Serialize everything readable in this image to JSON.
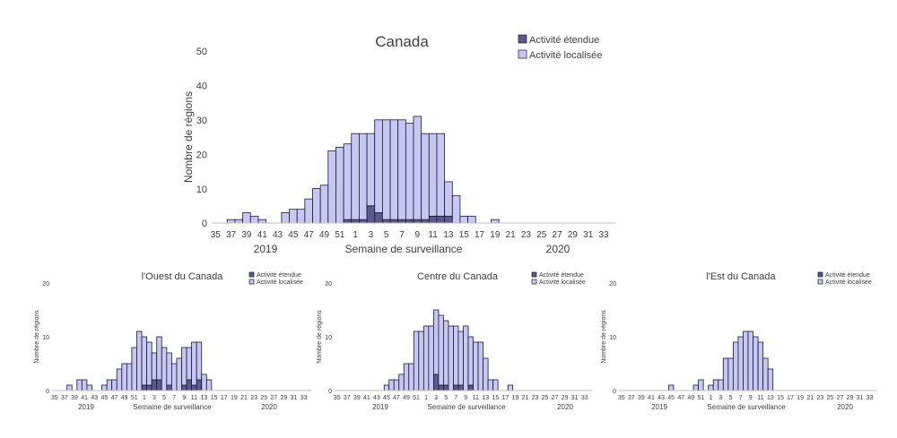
{
  "chart_data": [
    {
      "id": "canada",
      "type": "bar",
      "stacked": true,
      "title": "Canada",
      "xlabel": "Semaine de surveillance",
      "ylabel": "Nombre de régions",
      "ylim": [
        0,
        50
      ],
      "yticks": [
        0,
        10,
        20,
        30,
        40,
        50
      ],
      "categories": [
        35,
        36,
        37,
        38,
        39,
        40,
        41,
        42,
        43,
        44,
        45,
        46,
        47,
        48,
        49,
        50,
        51,
        52,
        1,
        2,
        3,
        4,
        5,
        6,
        7,
        8,
        9,
        10,
        11,
        12,
        13,
        14,
        15,
        16,
        17,
        18,
        19,
        20,
        21,
        22,
        23,
        24,
        25,
        26,
        27,
        28,
        29,
        30,
        31,
        32,
        33,
        34
      ],
      "tick_labels": [
        "35",
        "37",
        "39",
        "41",
        "43",
        "45",
        "47",
        "49",
        "51",
        "1",
        "3",
        "5",
        "7",
        "9",
        "11",
        "13",
        "15",
        "17",
        "19",
        "21",
        "23",
        "25",
        "27",
        "29",
        "31",
        "33"
      ],
      "year_labels": [
        "2019",
        "2020"
      ],
      "legend": {
        "position": "top-right",
        "entries": [
          "Activité étendue",
          "Activité localisée"
        ]
      },
      "series": [
        {
          "name": "Activité étendue",
          "color": "#5b5a8e",
          "values": [
            0,
            0,
            0,
            0,
            0,
            0,
            0,
            0,
            0,
            0,
            0,
            0,
            0,
            0,
            0,
            0,
            0,
            1,
            1,
            1,
            5,
            3,
            1,
            1,
            1,
            1,
            1,
            1,
            2,
            2,
            2,
            0,
            0,
            0,
            0,
            0,
            0,
            0,
            0,
            0,
            0,
            0,
            0,
            0,
            0,
            0,
            0,
            0,
            0,
            0,
            0,
            0
          ]
        },
        {
          "name": "Activité localisée",
          "color": "#c7c7f4",
          "values": [
            0,
            0,
            1,
            1,
            3,
            2,
            1,
            0,
            0,
            3,
            4,
            4,
            7,
            10,
            11,
            21,
            22,
            22,
            25,
            25,
            21,
            27,
            29,
            29,
            29,
            28,
            30,
            25,
            24,
            24,
            10,
            8,
            2,
            2,
            0,
            0,
            1,
            0,
            0,
            0,
            0,
            0,
            0,
            0,
            0,
            0,
            0,
            0,
            0,
            0,
            0,
            0
          ]
        }
      ]
    },
    {
      "id": "ouest",
      "type": "bar",
      "stacked": true,
      "title": "l'Ouest du Canada",
      "xlabel": "Semaine de surveillance",
      "ylabel": "Nombre de régions",
      "ylim": [
        0,
        20
      ],
      "yticks": [
        0,
        10,
        20
      ],
      "categories": [
        35,
        36,
        37,
        38,
        39,
        40,
        41,
        42,
        43,
        44,
        45,
        46,
        47,
        48,
        49,
        50,
        51,
        52,
        1,
        2,
        3,
        4,
        5,
        6,
        7,
        8,
        9,
        10,
        11,
        12,
        13,
        14,
        15,
        16,
        17,
        18,
        19,
        20,
        21,
        22,
        23,
        24,
        25,
        26,
        27,
        28,
        29,
        30,
        31,
        32,
        33,
        34
      ],
      "tick_labels": [
        "35",
        "37",
        "39",
        "41",
        "43",
        "45",
        "47",
        "49",
        "51",
        "1",
        "3",
        "5",
        "7",
        "9",
        "11",
        "13",
        "15",
        "17",
        "19",
        "21",
        "23",
        "25",
        "27",
        "29",
        "31",
        "33"
      ],
      "year_labels": [
        "2019",
        "2020"
      ],
      "legend": {
        "position": "top-right",
        "entries": [
          "Activité étendue",
          "Activité localisée"
        ]
      },
      "series": [
        {
          "name": "Activité étendue",
          "color": "#5b5a8e",
          "values": [
            0,
            0,
            0,
            0,
            0,
            0,
            0,
            0,
            0,
            0,
            0,
            0,
            0,
            0,
            0,
            0,
            0,
            0,
            1,
            1,
            2,
            2,
            0,
            1,
            0,
            0,
            1,
            2,
            1,
            2,
            0,
            0,
            0,
            0,
            0,
            0,
            0,
            0,
            0,
            0,
            0,
            0,
            0,
            0,
            0,
            0,
            0,
            0,
            0,
            0,
            0,
            0
          ]
        },
        {
          "name": "Activité localisée",
          "color": "#c7c7f4",
          "values": [
            0,
            0,
            0,
            1,
            0,
            2,
            2,
            1,
            0,
            0,
            1,
            2,
            2,
            4,
            5,
            5,
            8,
            11,
            9,
            8,
            5,
            8,
            8,
            6,
            5,
            6,
            7,
            6,
            8,
            7,
            3,
            2,
            0,
            0,
            0,
            0,
            0,
            0,
            0,
            0,
            0,
            0,
            0,
            0,
            0,
            0,
            0,
            0,
            0,
            0,
            0,
            0
          ]
        }
      ]
    },
    {
      "id": "centre",
      "type": "bar",
      "stacked": true,
      "title": "Centre du Canada",
      "xlabel": "Semaine de surveillance",
      "ylabel": "Nombre de régions",
      "ylim": [
        0,
        20
      ],
      "yticks": [
        0,
        10,
        20
      ],
      "categories": [
        35,
        36,
        37,
        38,
        39,
        40,
        41,
        42,
        43,
        44,
        45,
        46,
        47,
        48,
        49,
        50,
        51,
        52,
        1,
        2,
        3,
        4,
        5,
        6,
        7,
        8,
        9,
        10,
        11,
        12,
        13,
        14,
        15,
        16,
        17,
        18,
        19,
        20,
        21,
        22,
        23,
        24,
        25,
        26,
        27,
        28,
        29,
        30,
        31,
        32,
        33,
        34
      ],
      "tick_labels": [
        "35",
        "37",
        "39",
        "41",
        "43",
        "45",
        "47",
        "49",
        "51",
        "1",
        "3",
        "5",
        "7",
        "9",
        "11",
        "13",
        "15",
        "17",
        "19",
        "21",
        "23",
        "25",
        "27",
        "29",
        "31",
        "33"
      ],
      "year_labels": [
        "2019",
        "2020"
      ],
      "legend": {
        "position": "top-right",
        "entries": [
          "Activité étendue",
          "Activité localisée"
        ]
      },
      "series": [
        {
          "name": "Activité étendue",
          "color": "#5b5a8e",
          "values": [
            0,
            0,
            0,
            0,
            0,
            0,
            0,
            0,
            0,
            0,
            0,
            0,
            0,
            0,
            0,
            0,
            0,
            0,
            0,
            0,
            3,
            1,
            1,
            0,
            1,
            1,
            0,
            1,
            0,
            0,
            0,
            0,
            0,
            0,
            0,
            0,
            0,
            0,
            0,
            0,
            0,
            0,
            0,
            0,
            0,
            0,
            0,
            0,
            0,
            0,
            0,
            0
          ]
        },
        {
          "name": "Activité localisée",
          "color": "#c7c7f4",
          "values": [
            0,
            0,
            0,
            0,
            0,
            0,
            0,
            0,
            0,
            0,
            1,
            2,
            2,
            3,
            5,
            5,
            11,
            11,
            12,
            12,
            12,
            13,
            12,
            12,
            11,
            10,
            12,
            9,
            9,
            9,
            6,
            2,
            2,
            0,
            0,
            1,
            0,
            0,
            0,
            0,
            0,
            0,
            0,
            0,
            0,
            0,
            0,
            0,
            0,
            0,
            0,
            0
          ]
        }
      ]
    },
    {
      "id": "est",
      "type": "bar",
      "stacked": true,
      "title": "l'Est du Canada",
      "xlabel": "Semaine de surveillance",
      "ylabel": "Nombre de régions",
      "ylim": [
        0,
        20
      ],
      "yticks": [
        0,
        10,
        20
      ],
      "categories": [
        35,
        36,
        37,
        38,
        39,
        40,
        41,
        42,
        43,
        44,
        45,
        46,
        47,
        48,
        49,
        50,
        51,
        52,
        1,
        2,
        3,
        4,
        5,
        6,
        7,
        8,
        9,
        10,
        11,
        12,
        13,
        14,
        15,
        16,
        17,
        18,
        19,
        20,
        21,
        22,
        23,
        24,
        25,
        26,
        27,
        28,
        29,
        30,
        31,
        32,
        33,
        34
      ],
      "tick_labels": [
        "35",
        "37",
        "39",
        "41",
        "43",
        "45",
        "47",
        "49",
        "51",
        "1",
        "3",
        "5",
        "7",
        "9",
        "11",
        "13",
        "15",
        "17",
        "19",
        "21",
        "23",
        "25",
        "27",
        "29",
        "31",
        "33"
      ],
      "year_labels": [
        "2019",
        "2020"
      ],
      "legend": {
        "position": "top-right",
        "entries": [
          "Activité étendue",
          "Activité localisée"
        ]
      },
      "series": [
        {
          "name": "Activité étendue",
          "color": "#5b5a8e",
          "values": [
            0,
            0,
            0,
            0,
            0,
            0,
            0,
            0,
            0,
            0,
            0,
            0,
            0,
            0,
            0,
            0,
            0,
            0,
            0,
            0,
            0,
            0,
            0,
            0,
            0,
            0,
            0,
            0,
            0,
            0,
            0,
            0,
            0,
            0,
            0,
            0,
            0,
            0,
            0,
            0,
            0,
            0,
            0,
            0,
            0,
            0,
            0,
            0,
            0,
            0,
            0,
            0
          ]
        },
        {
          "name": "Activité localisée",
          "color": "#c7c7f4",
          "values": [
            0,
            0,
            0,
            0,
            0,
            0,
            0,
            0,
            0,
            0,
            1,
            0,
            0,
            0,
            0,
            1,
            2,
            0,
            1,
            2,
            2,
            6,
            6,
            9,
            10,
            11,
            11,
            10,
            9,
            6,
            4,
            0,
            0,
            0,
            0,
            0,
            0,
            0,
            0,
            0,
            0,
            0,
            0,
            0,
            0,
            0,
            0,
            0,
            0,
            0,
            0,
            0
          ]
        }
      ]
    }
  ]
}
